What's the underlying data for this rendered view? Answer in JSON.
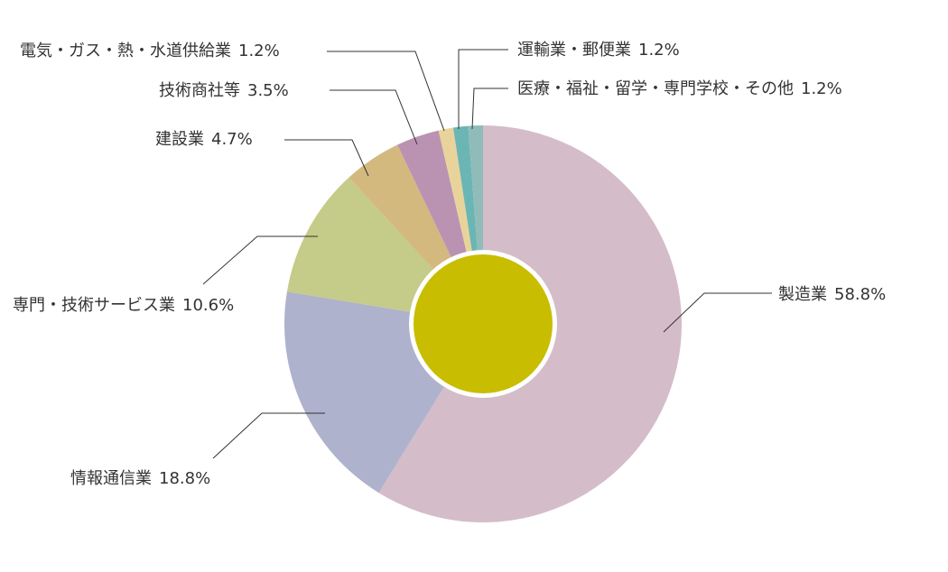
{
  "chart_data": {
    "type": "donut",
    "categories": [
      "製造業",
      "情報通信業",
      "専門・技術サービス業",
      "建設業",
      "技術商社等",
      "電気・ガス・熱・水道供給業",
      "運輸業・郵便業",
      "医療・福祉・留学・専門学校・その他"
    ],
    "values": [
      58.8,
      18.8,
      10.6,
      4.7,
      3.5,
      1.2,
      1.2,
      1.2
    ],
    "value_labels": [
      "58.8%",
      "18.8%",
      "10.6%",
      "4.7%",
      "3.5%",
      "1.2%",
      "1.2%",
      "1.2%"
    ],
    "colors": [
      "#d4bcc9",
      "#aeb2cc",
      "#c5cb88",
      "#d4b97f",
      "#bb93b2",
      "#e8d49a",
      "#6bb5b5",
      "#8fbcb8"
    ],
    "center_color": "#c8bd00"
  }
}
